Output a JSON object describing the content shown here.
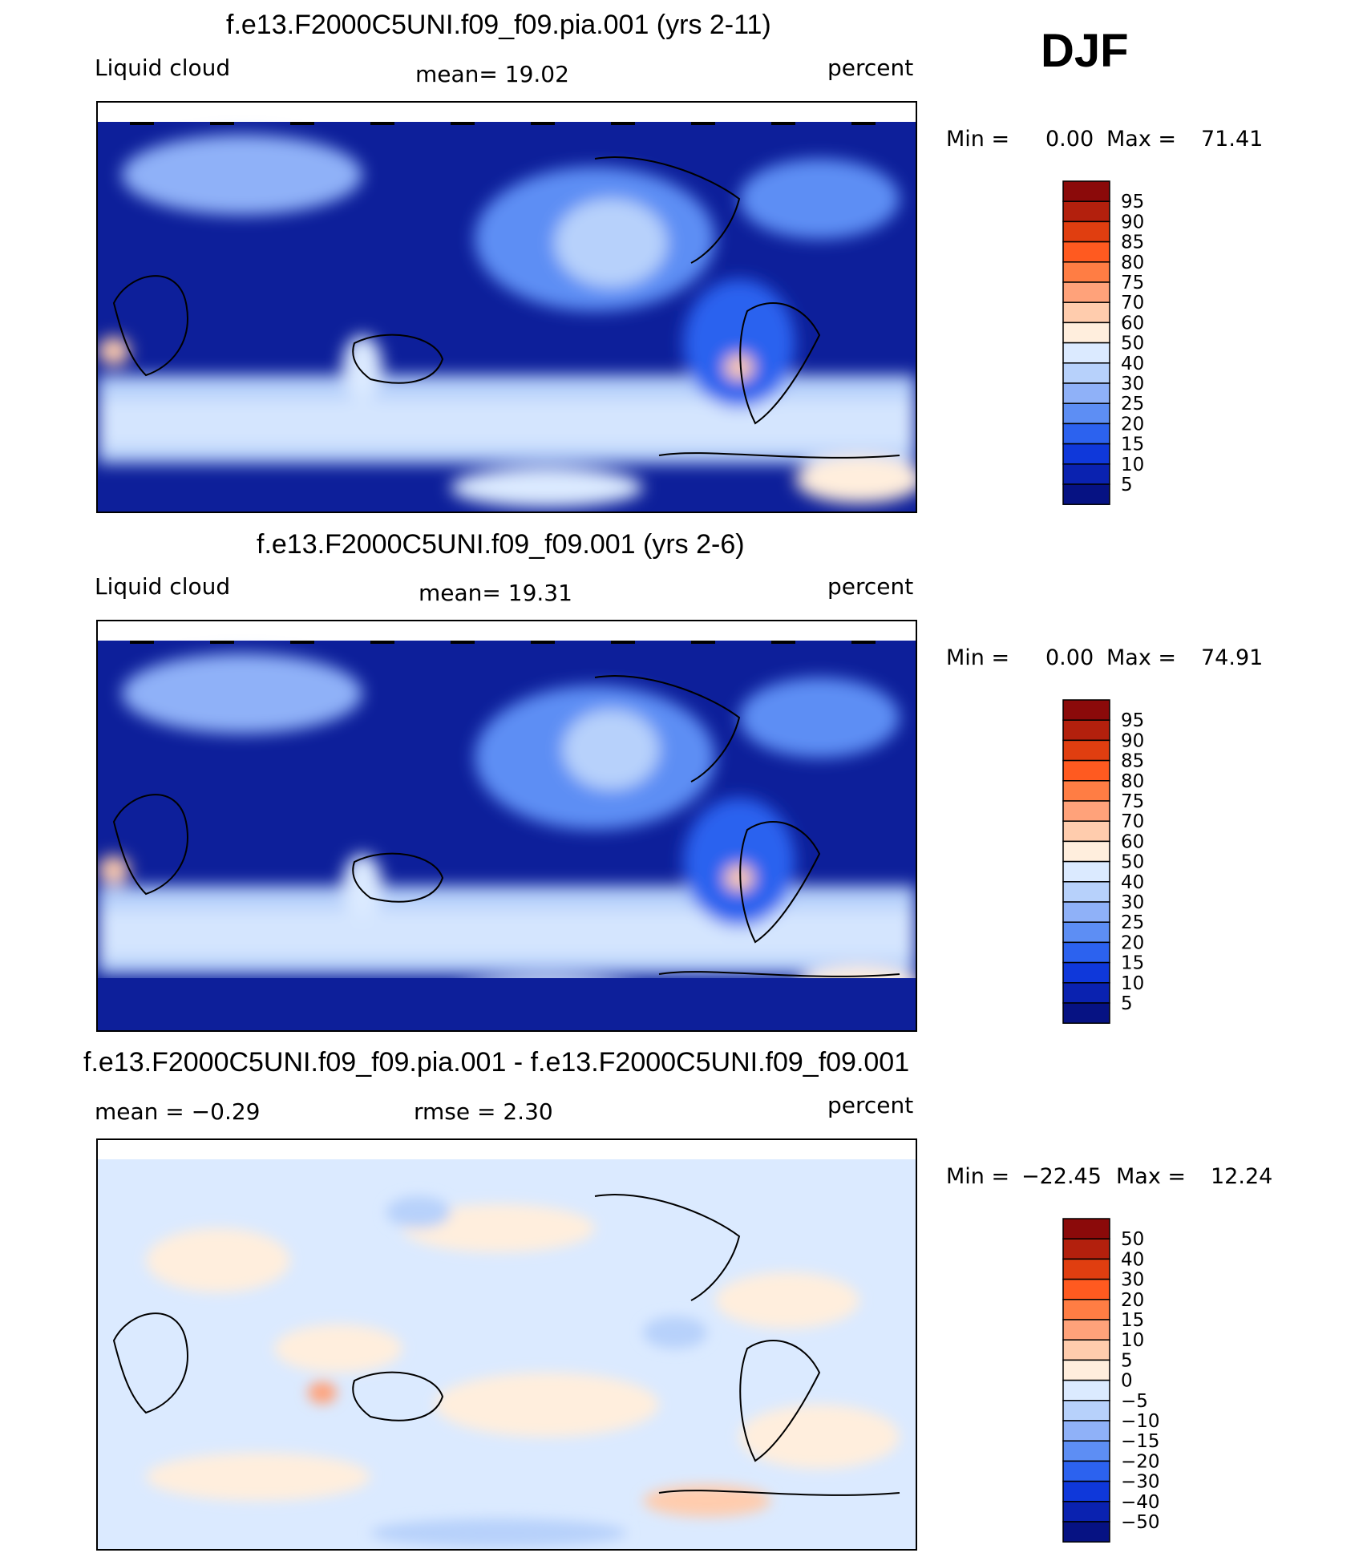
{
  "season": "DJF",
  "panels": [
    {
      "title": "f.e13.F2000C5UNI.f09_f09.pia.001 (yrs 2-11)",
      "left_label": "Liquid cloud",
      "mid_label": "mean=   19.02",
      "units": "percent",
      "min_label": "Min =",
      "min_value": "0.00",
      "max_label": "Max =",
      "max_value": "71.41",
      "colorbar": [
        "95",
        "90",
        "85",
        "80",
        "75",
        "70",
        "60",
        "50",
        "40",
        "30",
        "25",
        "20",
        "15",
        "10",
        "5"
      ]
    },
    {
      "title": "f.e13.F2000C5UNI.f09_f09.001 (yrs 2-6)",
      "left_label": "Liquid cloud",
      "mid_label": "mean=   19.31",
      "units": "percent",
      "min_label": "Min =",
      "min_value": "0.00",
      "max_label": "Max =",
      "max_value": "74.91",
      "colorbar": [
        "95",
        "90",
        "85",
        "80",
        "75",
        "70",
        "60",
        "50",
        "40",
        "30",
        "25",
        "20",
        "15",
        "10",
        "5"
      ]
    },
    {
      "title": "f.e13.F2000C5UNI.f09_f09.pia.001 - f.e13.F2000C5UNI.f09_f09.001",
      "left_label": "mean =   −0.29",
      "mid_label": "rmse =     2.30",
      "units": "percent",
      "min_label": "Min =",
      "min_value": "−22.45",
      "max_label": "Max =",
      "max_value": "12.24",
      "colorbar": [
        "50",
        "40",
        "30",
        "20",
        "15",
        "10",
        "5",
        "0",
        "−5",
        "−10",
        "−15",
        "−20",
        "−30",
        "−40",
        "−50"
      ]
    }
  ],
  "colors": {
    "cb16": [
      "#8b0a0a",
      "#b3200d",
      "#e03e10",
      "#ff5a20",
      "#ff7d44",
      "#ffa27a",
      "#ffccad",
      "#ffeedd",
      "#dbeaff",
      "#b7d1fb",
      "#8fb1f8",
      "#5d8ef4",
      "#2c62ef",
      "#0f38da",
      "#0a22b0",
      "#061283"
    ]
  },
  "chart_data": [
    {
      "type": "heatmap",
      "title": "f.e13.F2000C5UNI.f09_f09.pia.001 (yrs 2-11)",
      "variable": "Liquid cloud",
      "units": "percent",
      "mean": 19.02,
      "min": 0.0,
      "max": 71.41,
      "levels": [
        5,
        10,
        15,
        20,
        25,
        30,
        40,
        50,
        60,
        70,
        75,
        80,
        85,
        90,
        95
      ]
    },
    {
      "type": "heatmap",
      "title": "f.e13.F2000C5UNI.f09_f09.001 (yrs 2-6)",
      "variable": "Liquid cloud",
      "units": "percent",
      "mean": 19.31,
      "min": 0.0,
      "max": 74.91,
      "levels": [
        5,
        10,
        15,
        20,
        25,
        30,
        40,
        50,
        60,
        70,
        75,
        80,
        85,
        90,
        95
      ]
    },
    {
      "type": "heatmap",
      "title": "f.e13.F2000C5UNI.f09_f09.pia.001 - f.e13.F2000C5UNI.f09_f09.001",
      "units": "percent",
      "mean": -0.29,
      "rmse": 2.3,
      "min": -22.45,
      "max": 12.24,
      "levels": [
        -50,
        -40,
        -30,
        -20,
        -15,
        -10,
        -5,
        0,
        5,
        10,
        15,
        20,
        30,
        40,
        50
      ]
    }
  ]
}
